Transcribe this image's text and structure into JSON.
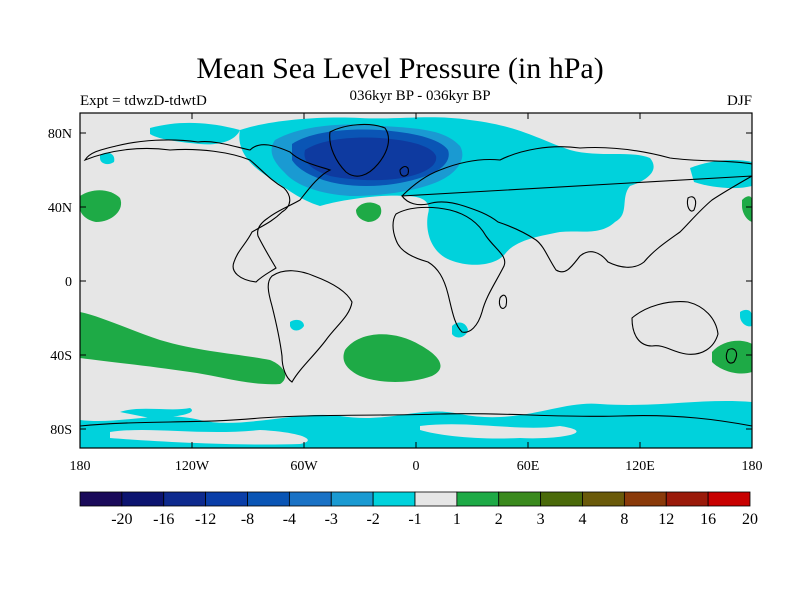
{
  "title": "Mean Sea Level Pressure (in hPa)",
  "experiment": "Expt = tdwzD-tdwtD",
  "subtitle": "036kyr BP - 036kyr BP",
  "season": "DJF",
  "y_axis": {
    "ticks": [
      "80N",
      "40N",
      "0",
      "40S",
      "80S"
    ],
    "values": [
      80,
      40,
      0,
      -40,
      -80
    ]
  },
  "x_axis": {
    "ticks": [
      "180",
      "120W",
      "60W",
      "0",
      "60E",
      "120E",
      "180"
    ],
    "values": [
      -180,
      -120,
      -60,
      0,
      60,
      120,
      180
    ]
  },
  "legend": {
    "labels": [
      "-20",
      "-16",
      "-12",
      "-8",
      "-4",
      "-3",
      "-2",
      "-1",
      "1",
      "2",
      "3",
      "4",
      "8",
      "12",
      "16",
      "20"
    ],
    "colors": [
      "#1a0a5a",
      "#0c1470",
      "#0e2a8e",
      "#0a3ea8",
      "#0a55b5",
      "#1a72c5",
      "#1a9ad2",
      "#00d2dc",
      "#e6e6e6",
      "#1eaa46",
      "#3a8a1e",
      "#4a6a0a",
      "#6a5a0a",
      "#8a3a0a",
      "#9a1a0a",
      "#c80000"
    ]
  },
  "colors": {
    "ocean_land": "#e6e6e6",
    "light_blue": "#00d2dc",
    "mid_blue": "#1a9ad2",
    "blue": "#0a55b5",
    "dark_blue": "#0e3aa0",
    "green": "#1eaa46"
  }
}
